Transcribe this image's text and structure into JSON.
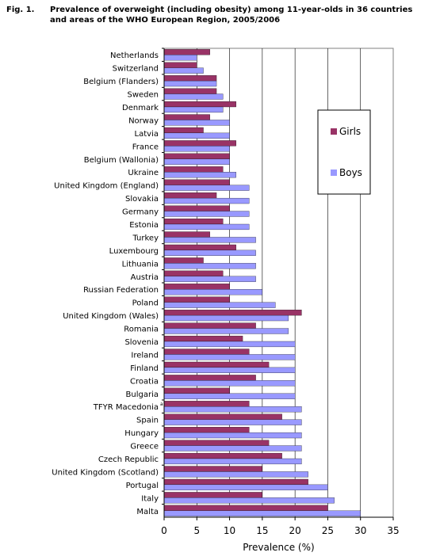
{
  "figure": {
    "label": "Fig. 1.",
    "title": "Prevalence of overweight (including obesity) among 11-year-olds in 36 countries and areas of the WHO European Region, 2005/2006"
  },
  "chart_data": {
    "type": "bar",
    "orientation": "horizontal",
    "categories": [
      "Netherlands",
      "Switzerland",
      "Belgium (Flanders)",
      "Sweden",
      "Denmark",
      "Norway",
      "Latvia",
      "France",
      "Belgium (Wallonia)",
      "Ukraine",
      "United Kingdom (England)",
      "Slovakia",
      "Germany",
      "Estonia",
      "Turkey",
      "Luxembourg",
      "Lithuania",
      "Austria",
      "Russian Federation",
      "Poland",
      "United Kingdom (Wales)",
      "Romania",
      "Slovenia",
      "Ireland",
      "Finland",
      "Croatia",
      "Bulgaria",
      "TFYR Macedonia",
      "Spain",
      "Hungary",
      "Greece",
      "Czech Republic",
      "United Kingdom (Scotland)",
      "Portugal",
      "Italy",
      "Malta"
    ],
    "series": [
      {
        "name": "Girls",
        "color": "#993366",
        "values": [
          7,
          5,
          8,
          8,
          11,
          7,
          6,
          11,
          10,
          9,
          10,
          8,
          10,
          9,
          7,
          11,
          6,
          9,
          10,
          10,
          21,
          14,
          12,
          13,
          16,
          14,
          10,
          13,
          18,
          13,
          16,
          18,
          15,
          22,
          15,
          25
        ]
      },
      {
        "name": "Boys",
        "color": "#9999ff",
        "values": [
          5,
          6,
          8,
          9,
          9,
          10,
          10,
          10,
          10,
          11,
          13,
          13,
          13,
          13,
          14,
          14,
          14,
          14,
          15,
          17,
          19,
          19,
          20,
          20,
          20,
          20,
          20,
          21,
          21,
          21,
          21,
          21,
          22,
          25,
          26,
          30
        ]
      }
    ],
    "superscript_note": {
      "category": "TFYR Macedonia",
      "text": "a"
    },
    "xlabel": "Prevalence (%)",
    "xlim": [
      0,
      35
    ],
    "xticks": [
      0,
      5,
      10,
      15,
      20,
      25,
      30,
      35
    ],
    "grid": "vertical",
    "legend_position": "right"
  }
}
